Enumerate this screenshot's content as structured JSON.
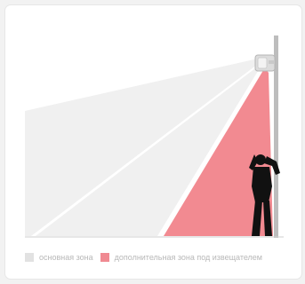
{
  "diagram": {
    "colors": {
      "main_zone": "#f0f0f0",
      "extra_zone": "#f28a91",
      "pole": "#bdbdbd",
      "detector": "#d9d9d9",
      "person": "#111111",
      "ground": "#cfcfcf"
    },
    "icons": {
      "detector": "motion-detector-icon",
      "person": "person-silhouette-icon"
    }
  },
  "legend": {
    "items": [
      {
        "label": "основная зона",
        "color": "#e2e2e2"
      },
      {
        "label": "дополнительная зона под извещателем",
        "color": "#f08a92"
      }
    ]
  }
}
